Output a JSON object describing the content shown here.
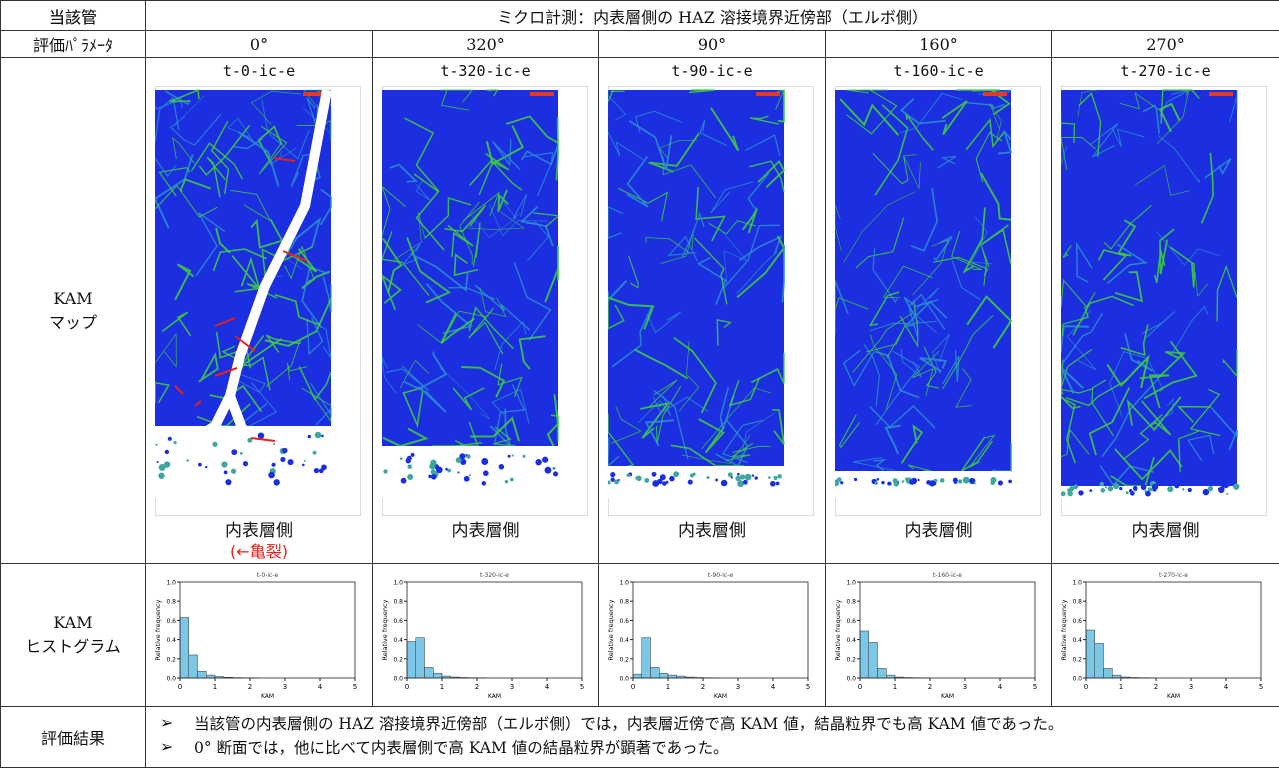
{
  "header": {
    "label": "当該管",
    "title": "ミクロ計測：内表層側の HAZ 溶接境界近傍部（エルボ側）"
  },
  "params": {
    "label": "評価ﾊﾟﾗﾒｰﾀ",
    "angles": [
      "0°",
      "320°",
      "90°",
      "160°",
      "270°"
    ]
  },
  "map_row": {
    "label": [
      "KAM",
      "マップ"
    ],
    "maps": [
      {
        "name": "t-0-ic-e",
        "side": "内表層側",
        "note": "(←亀裂)"
      },
      {
        "name": "t-320-ic-e",
        "side": "内表層側"
      },
      {
        "name": "t-90-ic-e",
        "side": "内表層側"
      },
      {
        "name": "t-160-ic-e",
        "side": "内表層側"
      },
      {
        "name": "t-270-ic-e",
        "side": "内表層側"
      }
    ]
  },
  "hist_row": {
    "label": [
      "KAM",
      "ヒストグラム"
    ],
    "histograms": [
      {
        "type": "histogram",
        "title": "t-0-ic-e",
        "xlabel": "KAM",
        "ylabel": "Relative frequency",
        "color": "#7cc6e6",
        "bins": [
          0,
          0.25,
          0.5,
          0.75,
          1,
          1.25,
          1.5,
          1.75,
          2,
          2.25,
          2.5
        ],
        "values": [
          0.63,
          0.24,
          0.07,
          0.03,
          0.015,
          0.008,
          0.004,
          0.002,
          0.001,
          0
        ],
        "xlim": [
          0,
          5
        ],
        "ylim": [
          0,
          1
        ],
        "xticks": [
          0,
          1,
          2,
          3,
          4,
          5
        ],
        "yticks": [
          {
            "value": 0,
            "label": "0.0"
          },
          {
            "value": 0.2,
            "label": "0.2"
          },
          {
            "value": 0.4,
            "label": "0.4"
          },
          {
            "value": 0.6,
            "label": "0.6"
          },
          {
            "value": 0.8,
            "label": "0.8"
          },
          {
            "value": 1,
            "label": "1.0"
          }
        ]
      },
      {
        "type": "histogram",
        "title": "t-320-ic-e",
        "xlabel": "KAM",
        "ylabel": "Relative frequency",
        "color": "#7cc6e6",
        "bins": [
          0,
          0.25,
          0.5,
          0.75,
          1,
          1.25,
          1.5,
          1.75,
          2,
          2.25,
          2.5
        ],
        "values": [
          0.38,
          0.42,
          0.11,
          0.05,
          0.02,
          0.01,
          0.005,
          0.003,
          0.001,
          0
        ],
        "xlim": [
          0,
          5
        ],
        "ylim": [
          0,
          1
        ],
        "xticks": [
          0,
          1,
          2,
          3,
          4,
          5
        ],
        "yticks": [
          {
            "value": 0,
            "label": "0.0"
          },
          {
            "value": 0.2,
            "label": "0.2"
          },
          {
            "value": 0.4,
            "label": "0.4"
          },
          {
            "value": 0.6,
            "label": "0.6"
          },
          {
            "value": 0.8,
            "label": "0.8"
          },
          {
            "value": 1,
            "label": "1.0"
          }
        ]
      },
      {
        "type": "histogram",
        "title": "t-90-ic-e",
        "xlabel": "KAM",
        "ylabel": "Relative frequency",
        "color": "#7cc6e6",
        "bins": [
          0,
          0.25,
          0.5,
          0.75,
          1,
          1.25,
          1.5,
          1.75,
          2,
          2.25,
          2.5
        ],
        "values": [
          0.04,
          0.42,
          0.11,
          0.05,
          0.03,
          0.02,
          0.01,
          0.005,
          0.003,
          0.001
        ],
        "xlim": [
          0,
          5
        ],
        "ylim": [
          0,
          1
        ],
        "xticks": [
          0,
          1,
          2,
          3,
          4,
          5
        ],
        "yticks": [
          {
            "value": 0,
            "label": "0.0"
          },
          {
            "value": 0.2,
            "label": "0.2"
          },
          {
            "value": 0.4,
            "label": "0.4"
          },
          {
            "value": 0.6,
            "label": "0.6"
          },
          {
            "value": 0.8,
            "label": "0.8"
          },
          {
            "value": 1,
            "label": "1.0"
          }
        ]
      },
      {
        "type": "histogram",
        "title": "t-160-ic-e",
        "xlabel": "KAM",
        "ylabel": "Relative frequency",
        "color": "#7cc6e6",
        "bins": [
          0,
          0.25,
          0.5,
          0.75,
          1,
          1.25,
          1.5,
          1.75,
          2,
          2.25,
          2.5
        ],
        "values": [
          0.49,
          0.37,
          0.1,
          0.03,
          0.01,
          0.005,
          0.003,
          0.001,
          0,
          0
        ],
        "xlim": [
          0,
          5
        ],
        "ylim": [
          0,
          1
        ],
        "xticks": [
          0,
          1,
          2,
          3,
          4,
          5
        ],
        "yticks": [
          {
            "value": 0,
            "label": "0.0"
          },
          {
            "value": 0.2,
            "label": "0.2"
          },
          {
            "value": 0.4,
            "label": "0.4"
          },
          {
            "value": 0.6,
            "label": "0.6"
          },
          {
            "value": 0.8,
            "label": "0.8"
          },
          {
            "value": 1,
            "label": "1.0"
          }
        ]
      },
      {
        "type": "histogram",
        "title": "t-270-ic-e",
        "xlabel": "KAM",
        "ylabel": "Relative frequency",
        "color": "#7cc6e6",
        "bins": [
          0,
          0.25,
          0.5,
          0.75,
          1,
          1.25,
          1.5,
          1.75,
          2,
          2.25,
          2.5
        ],
        "values": [
          0.5,
          0.36,
          0.1,
          0.03,
          0.01,
          0.005,
          0.003,
          0.001,
          0,
          0
        ],
        "xlim": [
          0,
          5
        ],
        "ylim": [
          0,
          1
        ],
        "xticks": [
          0,
          1,
          2,
          3,
          4,
          5
        ],
        "yticks": [
          {
            "value": 0,
            "label": "0.0"
          },
          {
            "value": 0.2,
            "label": "0.2"
          },
          {
            "value": 0.4,
            "label": "0.4"
          },
          {
            "value": 0.6,
            "label": "0.6"
          },
          {
            "value": 0.8,
            "label": "0.8"
          },
          {
            "value": 1,
            "label": "1.0"
          }
        ]
      }
    ]
  },
  "results": {
    "label": "評価結果",
    "items": [
      "当該管の内表層側の HAZ 溶接境界近傍部（エルボ側）では，内表層近傍で高 KAM 値，結晶粒界でも高 KAM 値であった。",
      "0° 断面では，他に比べて内表層側で高 KAM 値の結晶粒界が顕著であった。"
    ]
  }
}
